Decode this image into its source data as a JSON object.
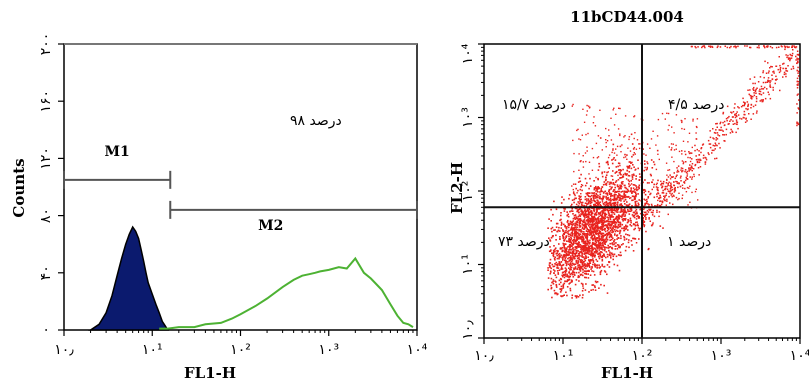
{
  "chart_data": [
    {
      "type": "area",
      "subtype": "histogram",
      "xlabel": "FL1-H",
      "ylabel": "Counts",
      "xscale": "log",
      "xlim": [
        1,
        10000
      ],
      "ylim": [
        0,
        200
      ],
      "grid": false,
      "x_ticks": [
        "۱۰٫",
        "۱۰¹",
        "۱۰²",
        "۱۰³",
        "۱۰⁴"
      ],
      "y_ticks": [
        "۰",
        "۴۰",
        "۸۰",
        "۱۲۰",
        "۱۶۰",
        "۲۰۰"
      ],
      "colors": {
        "filled": "#0b1a6e",
        "filled_outline": "#000000",
        "line": "#4db233"
      },
      "series": [
        {
          "style": "filled",
          "x": [
            2,
            2.5,
            3,
            3.5,
            4,
            4.5,
            5,
            5.5,
            6,
            6.5,
            7,
            7.5,
            8,
            8.5,
            9,
            10,
            11,
            12,
            13,
            14,
            15
          ],
          "values": [
            0,
            4,
            12,
            24,
            38,
            50,
            60,
            67,
            72,
            69,
            64,
            56,
            48,
            40,
            33,
            25,
            18,
            12,
            6,
            3,
            0
          ]
        },
        {
          "style": "line",
          "x": [
            12,
            15,
            20,
            30,
            40,
            60,
            80,
            100,
            150,
            200,
            300,
            400,
            500,
            600,
            700,
            800,
            1000,
            1300,
            1600,
            2000,
            2500,
            3000,
            4000,
            5000,
            6000,
            7000,
            8000,
            9000
          ],
          "values": [
            1,
            1,
            2,
            2,
            4,
            5,
            8,
            11,
            17,
            22,
            30,
            35,
            38,
            39,
            40,
            41,
            42,
            44,
            43,
            50,
            40,
            36,
            28,
            18,
            10,
            5,
            4,
            2
          ]
        }
      ],
      "markers": [
        {
          "name": "M1",
          "from": 1,
          "to": 16,
          "level": 105
        },
        {
          "name": "M2",
          "from": 16,
          "to": 10000,
          "level": 84
        }
      ],
      "annotations": [
        "۹۸ درصد"
      ]
    },
    {
      "type": "scatter",
      "title": "11bCD44.004",
      "xlabel": "FL1-H",
      "ylabel": "FL2-H",
      "xscale": "log",
      "yscale": "log",
      "xlim": [
        1,
        10000
      ],
      "ylim": [
        1,
        10000
      ],
      "grid": false,
      "x_ticks": [
        "۱۰٫",
        "۱۰¹",
        "۱۰²",
        "۱۰³",
        "۱۰⁴"
      ],
      "y_ticks": [
        "۱۰٫",
        "۱۰¹",
        "۱۰²",
        "۱۰³",
        "۱۰⁴"
      ],
      "point_color": "#e8231e",
      "quadrant_gate": {
        "x": 100,
        "y": 60
      },
      "quadrants": {
        "upper_left": "۱۵/۷ درصد",
        "upper_right": "۴/۵ درصد",
        "lower_left": "۷۳ درصد",
        "lower_right": "۱ درصد"
      }
    }
  ]
}
